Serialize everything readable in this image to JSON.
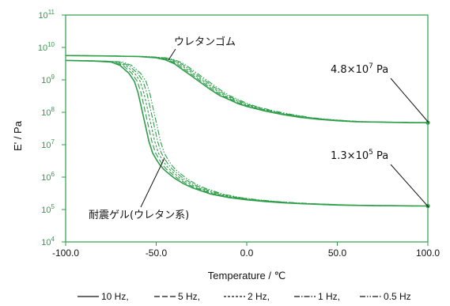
{
  "chart_data": {
    "type": "line",
    "title": "",
    "xlabel": "Temperature / ℃",
    "ylabel": "E' / Pa",
    "xlim": [
      -100,
      100
    ],
    "ylim_log10": [
      4,
      11
    ],
    "y_scale": "log",
    "x_ticks": [
      "-100.0",
      "-50.0",
      "0.0",
      "50.0",
      "100.0"
    ],
    "y_ticks": [
      {
        "base": "10",
        "exp": "4"
      },
      {
        "base": "10",
        "exp": "5"
      },
      {
        "base": "10",
        "exp": "6"
      },
      {
        "base": "10",
        "exp": "7"
      },
      {
        "base": "10",
        "exp": "8"
      },
      {
        "base": "10",
        "exp": "9"
      },
      {
        "base": "10",
        "exp": "10"
      },
      {
        "base": "10",
        "exp": "11"
      }
    ],
    "line_color": "#2e9e4a",
    "legend": [
      {
        "label": "10 Hz,",
        "dash": "solid"
      },
      {
        "label": "5 Hz,",
        "dash": "long-dash"
      },
      {
        "label": "2 Hz,",
        "dash": "short-dash"
      },
      {
        "label": "1 Hz,",
        "dash": "dash-dot"
      },
      {
        "label": "0.5 Hz",
        "dash": "dash-dot-dot"
      }
    ],
    "groups": [
      {
        "label": "ウレタンゴム",
        "endpoint_label": {
          "prefix": "4.8×10",
          "exp": "7",
          "suffix": " Pa"
        },
        "x": [
          -100,
          -80,
          -60,
          -50,
          -45,
          -40,
          -35,
          -30,
          -25,
          -20,
          -15,
          -10,
          -5,
          0,
          10,
          20,
          30,
          40,
          50,
          60,
          70,
          80,
          90,
          100
        ],
        "log10E": [
          9.75,
          9.74,
          9.72,
          9.68,
          9.62,
          9.5,
          9.3,
          9.1,
          8.9,
          8.7,
          8.52,
          8.4,
          8.27,
          8.18,
          8.04,
          7.93,
          7.84,
          7.78,
          7.74,
          7.71,
          7.7,
          7.69,
          7.68,
          7.68
        ],
        "shift_per_series_C": 1.3
      },
      {
        "label": "耐震ゲル(ウレタン系)",
        "endpoint_label": {
          "prefix": "1.3×10",
          "exp": "5",
          "suffix": " Pa"
        },
        "x": [
          -100,
          -85,
          -75,
          -70,
          -65,
          -62,
          -60,
          -58,
          -56,
          -54,
          -52,
          -50,
          -48,
          -46,
          -44,
          -42,
          -40,
          -35,
          -30,
          -20,
          -10,
          0,
          10,
          20,
          30,
          40,
          50,
          60,
          70,
          80,
          90,
          100
        ],
        "log10E": [
          9.6,
          9.58,
          9.55,
          9.45,
          9.2,
          8.95,
          8.6,
          8.1,
          7.6,
          7.1,
          6.75,
          6.55,
          6.38,
          6.25,
          6.15,
          6.06,
          5.97,
          5.8,
          5.67,
          5.48,
          5.37,
          5.3,
          5.25,
          5.21,
          5.18,
          5.16,
          5.14,
          5.13,
          5.12,
          5.12,
          5.11,
          5.11
        ],
        "shift_per_series_C": 1.6
      }
    ]
  }
}
